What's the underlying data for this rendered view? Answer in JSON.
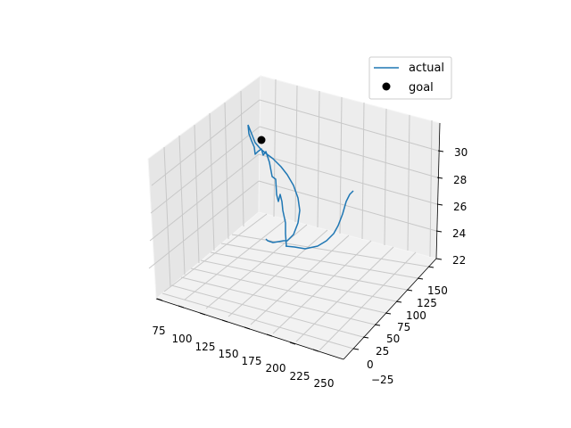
{
  "chart_data": {
    "type": "line3d",
    "title": "",
    "xlabel": "",
    "ylabel": "",
    "zlabel": "",
    "grid": true,
    "legend_position": "top-right",
    "x_ticks": [
      "75",
      "100",
      "125",
      "150",
      "175",
      "200",
      "225",
      "250"
    ],
    "y_ticks": [
      "−25",
      "0",
      "25",
      "50",
      "75",
      "100",
      "125",
      "150"
    ],
    "z_ticks": [
      "22",
      "24",
      "26",
      "28",
      "30"
    ],
    "series": [
      {
        "name": "actual",
        "color": "#1f77b4"
      },
      {
        "name": "goal",
        "color": "#000000"
      }
    ]
  }
}
